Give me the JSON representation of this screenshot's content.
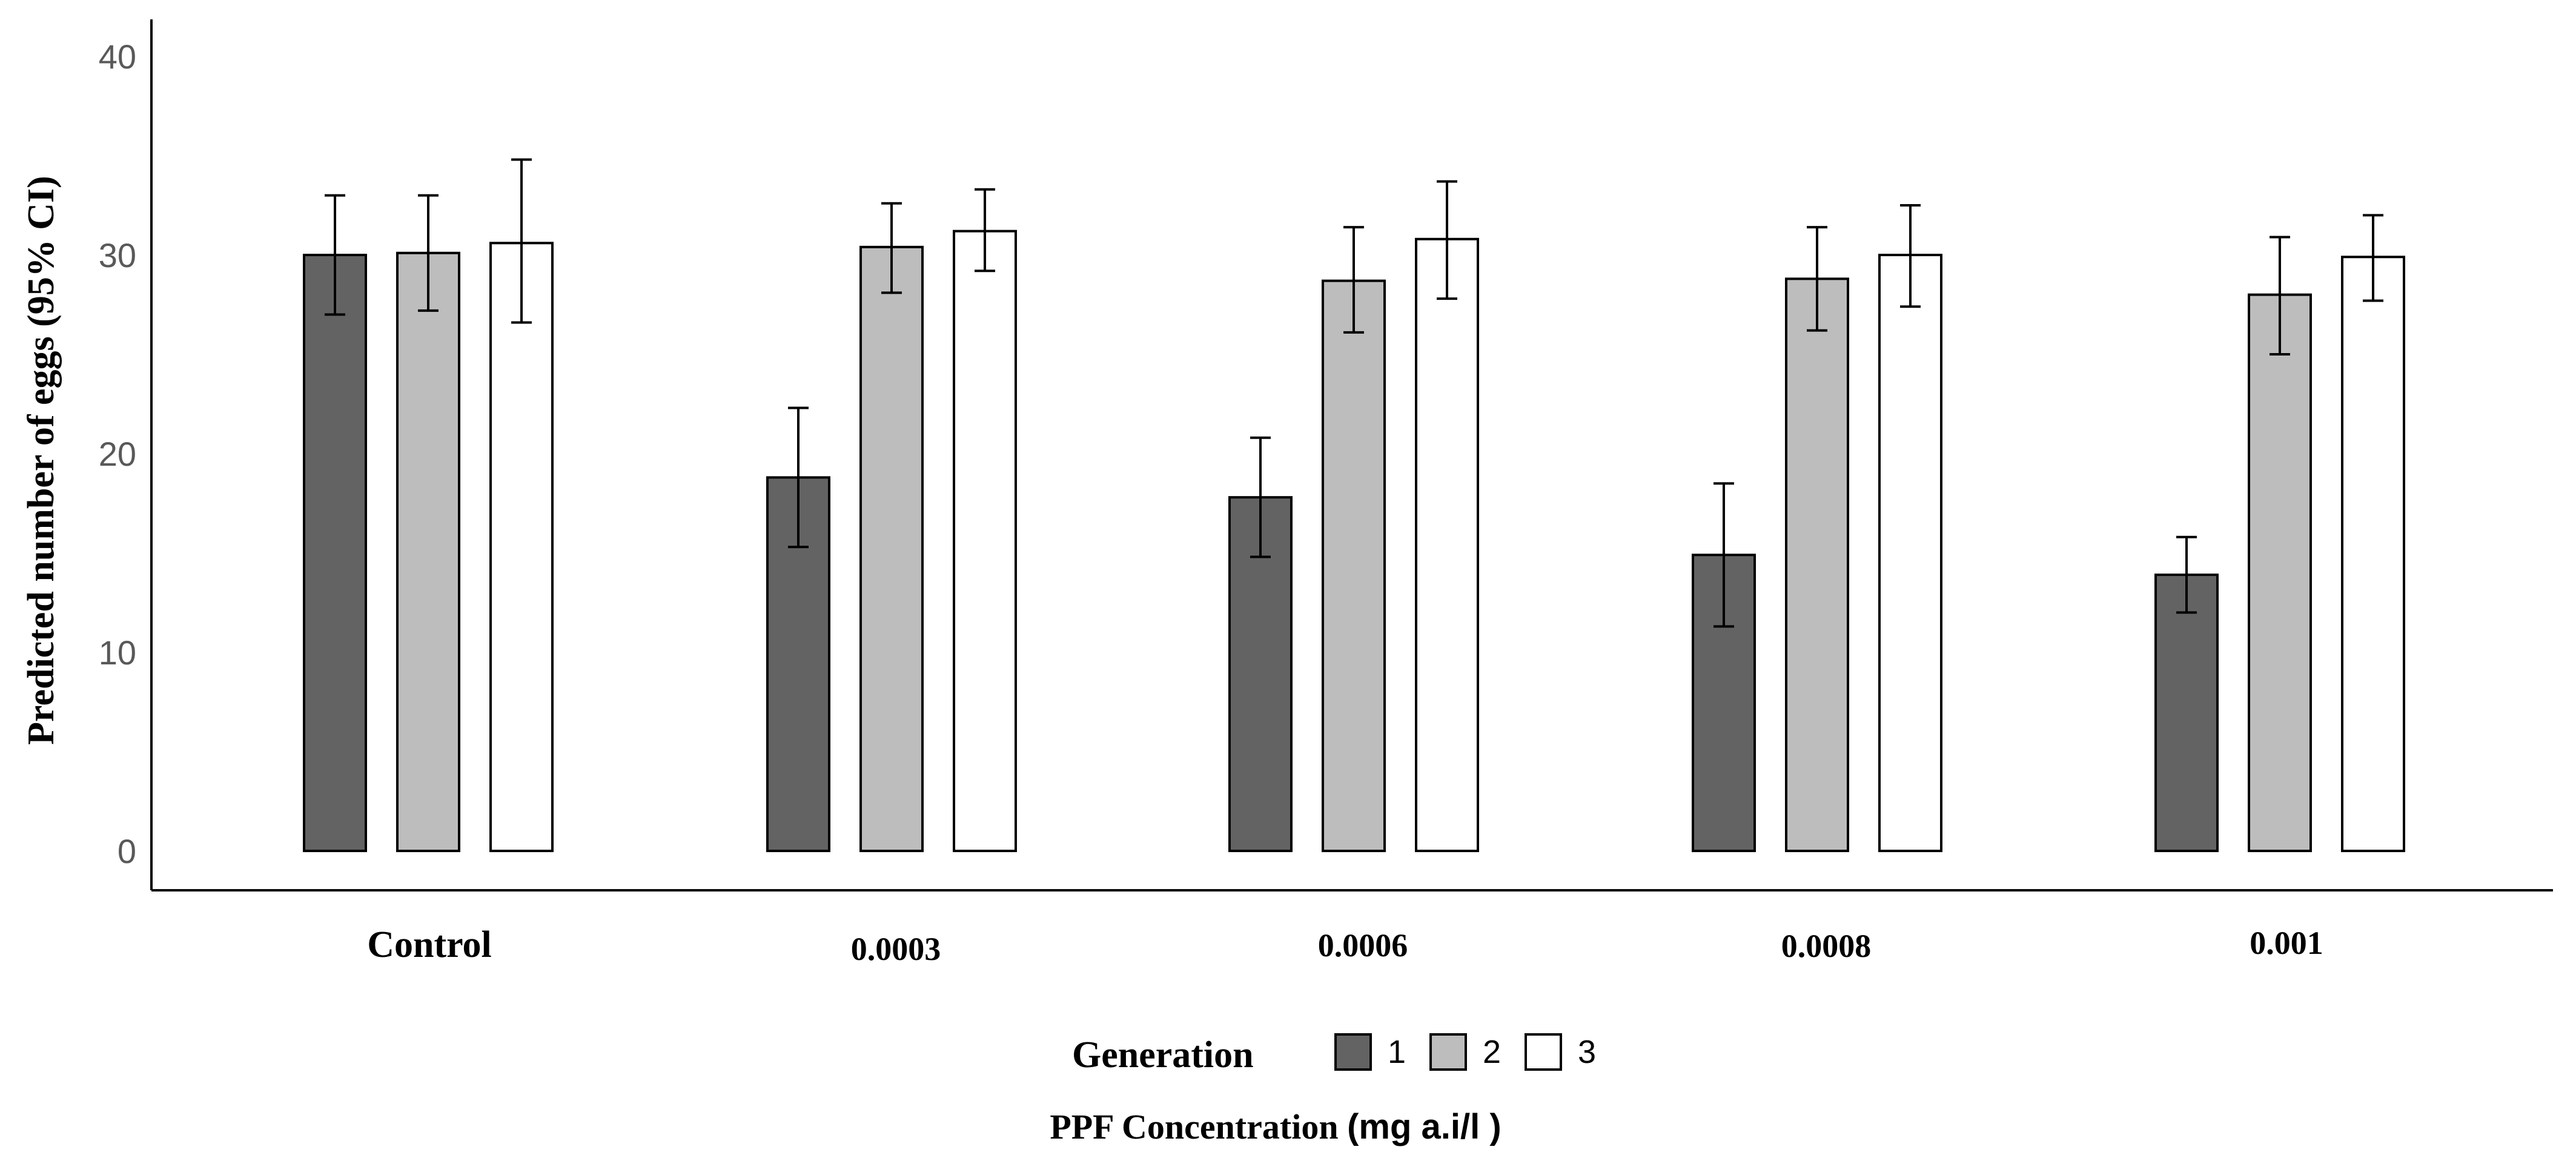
{
  "chart_data": {
    "type": "bar",
    "title": "",
    "ylabel": "Predicted number of eggs (95% CI)",
    "xlabel_serif": "PPF Concentration ",
    "xlabel_sans": "(mg a.i/l )",
    "ylim": [
      0,
      40
    ],
    "yticks": [
      0,
      10,
      20,
      30,
      40
    ],
    "categories": [
      "Control",
      "0.0003",
      "0.0006",
      "0.0008",
      "0.001"
    ],
    "legend": {
      "title": "Generation",
      "placement": "bottom-center"
    },
    "series": [
      {
        "name": "1",
        "color": "#636363",
        "values": [
          30.0,
          18.8,
          17.8,
          14.9,
          13.9
        ],
        "ci_low": [
          27.0,
          15.3,
          14.8,
          11.3,
          12.0
        ],
        "ci_high": [
          33.0,
          22.3,
          20.8,
          18.5,
          15.8
        ]
      },
      {
        "name": "2",
        "color": "#bdbdbd",
        "values": [
          30.1,
          30.4,
          28.7,
          28.8,
          28.0
        ],
        "ci_low": [
          27.2,
          28.1,
          26.1,
          26.2,
          25.0
        ],
        "ci_high": [
          33.0,
          32.6,
          31.4,
          31.4,
          30.9
        ]
      },
      {
        "name": "3",
        "color": "#ffffff",
        "values": [
          30.6,
          31.2,
          30.8,
          30.0,
          29.9
        ],
        "ci_low": [
          26.6,
          29.2,
          27.8,
          27.4,
          27.7
        ],
        "ci_high": [
          34.8,
          33.3,
          33.7,
          32.5,
          32.0
        ]
      }
    ]
  }
}
